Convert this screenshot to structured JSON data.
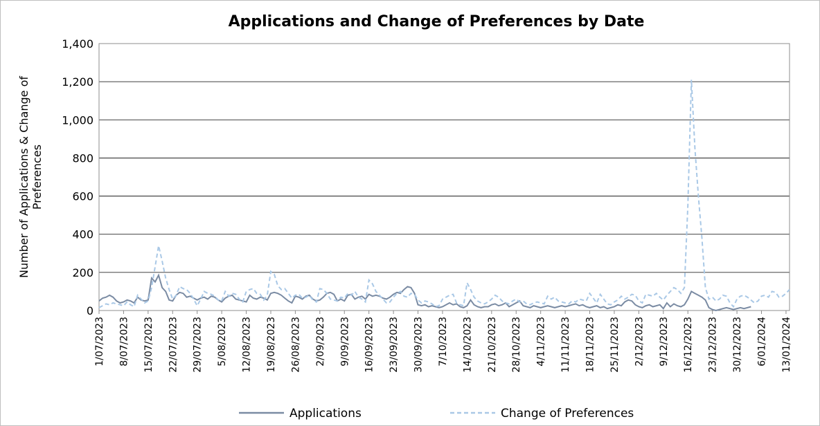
{
  "chart_data": {
    "type": "line",
    "title": "Applications and Change of Preferences by Date",
    "y_label": "Number of Applications & Change of Preferences",
    "categories": [
      "1/07/2023",
      null,
      null,
      null,
      null,
      null,
      null,
      "8/07/2023",
      null,
      null,
      null,
      null,
      null,
      null,
      "15/07/2023",
      null,
      null,
      null,
      null,
      null,
      null,
      "22/07/2023",
      null,
      null,
      null,
      null,
      null,
      null,
      "29/07/2023",
      null,
      null,
      null,
      null,
      null,
      null,
      "5/08/2023",
      null,
      null,
      null,
      null,
      null,
      null,
      "12/08/2023",
      null,
      null,
      null,
      null,
      null,
      null,
      "19/08/2023",
      null,
      null,
      null,
      null,
      null,
      null,
      "26/08/2023",
      null,
      null,
      null,
      null,
      null,
      null,
      "2/09/2023",
      null,
      null,
      null,
      null,
      null,
      null,
      "9/09/2023",
      null,
      null,
      null,
      null,
      null,
      null,
      "16/09/2023",
      null,
      null,
      null,
      null,
      null,
      null,
      "23/09/2023",
      null,
      null,
      null,
      null,
      null,
      null,
      "30/09/2023",
      null,
      null,
      null,
      null,
      null,
      null,
      "7/10/2023",
      null,
      null,
      null,
      null,
      null,
      null,
      "14/10/2023",
      null,
      null,
      null,
      null,
      null,
      null,
      "21/10/2023",
      null,
      null,
      null,
      null,
      null,
      null,
      "28/10/2023",
      null,
      null,
      null,
      null,
      null,
      null,
      "4/11/2023",
      null,
      null,
      null,
      null,
      null,
      null,
      "11/11/2023",
      null,
      null,
      null,
      null,
      null,
      null,
      "18/11/2023",
      null,
      null,
      null,
      null,
      null,
      null,
      "25/11/2023",
      null,
      null,
      null,
      null,
      null,
      null,
      "2/12/2023",
      null,
      null,
      null,
      null,
      null,
      null,
      "9/12/2023",
      null,
      null,
      null,
      null,
      null,
      null,
      "16/12/2023",
      null,
      null,
      null,
      null,
      null,
      null,
      "23/12/2023",
      null,
      null,
      null,
      null,
      null,
      null,
      "30/12/2023",
      null,
      null,
      null,
      null,
      null,
      null,
      "6/01/2024",
      null,
      null,
      null,
      null,
      null,
      null,
      "13/01/2024",
      null
    ],
    "series": [
      {
        "name": "Applications",
        "color": "#7a8ba3",
        "dash": false,
        "values": [
          50,
          65,
          70,
          80,
          70,
          50,
          40,
          45,
          55,
          50,
          40,
          70,
          55,
          50,
          55,
          170,
          150,
          185,
          120,
          100,
          55,
          50,
          80,
          95,
          90,
          70,
          75,
          65,
          55,
          65,
          70,
          60,
          75,
          70,
          55,
          45,
          65,
          75,
          80,
          60,
          55,
          50,
          45,
          80,
          65,
          60,
          70,
          65,
          55,
          90,
          95,
          90,
          80,
          65,
          50,
          40,
          75,
          70,
          60,
          75,
          80,
          60,
          50,
          55,
          70,
          90,
          95,
          85,
          50,
          60,
          50,
          80,
          85,
          60,
          70,
          75,
          60,
          85,
          75,
          80,
          75,
          65,
          60,
          70,
          85,
          95,
          90,
          110,
          125,
          120,
          90,
          30,
          25,
          30,
          20,
          25,
          20,
          15,
          20,
          30,
          40,
          30,
          35,
          20,
          15,
          25,
          55,
          30,
          20,
          15,
          20,
          20,
          30,
          35,
          25,
          30,
          40,
          20,
          30,
          40,
          50,
          25,
          20,
          15,
          25,
          20,
          15,
          20,
          25,
          20,
          15,
          20,
          25,
          20,
          25,
          30,
          35,
          25,
          30,
          20,
          15,
          20,
          25,
          15,
          20,
          10,
          15,
          20,
          30,
          25,
          45,
          55,
          50,
          30,
          20,
          15,
          25,
          30,
          20,
          25,
          30,
          10,
          40,
          20,
          35,
          25,
          20,
          30,
          60,
          100,
          90,
          80,
          70,
          55,
          15,
          5,
          0,
          5,
          10,
          15,
          10,
          5,
          10,
          15,
          10,
          15,
          20,
          null,
          null,
          null,
          null,
          null,
          null,
          null,
          null,
          null,
          null,
          null
        ]
      },
      {
        "name": "Change of Preferences",
        "color": "#a9c8e6",
        "dash": true,
        "values": [
          15,
          25,
          35,
          30,
          40,
          35,
          30,
          25,
          45,
          30,
          20,
          80,
          60,
          40,
          50,
          120,
          230,
          340,
          260,
          170,
          110,
          60,
          80,
          125,
          115,
          110,
          90,
          60,
          25,
          60,
          100,
          90,
          85,
          75,
          55,
          50,
          100,
          75,
          90,
          85,
          60,
          45,
          100,
          110,
          115,
          90,
          85,
          55,
          80,
          205,
          190,
          130,
          110,
          115,
          90,
          65,
          80,
          85,
          65,
          70,
          80,
          55,
          45,
          115,
          110,
          90,
          60,
          55,
          50,
          70,
          65,
          90,
          80,
          100,
          70,
          60,
          45,
          160,
          140,
          100,
          80,
          60,
          40,
          45,
          70,
          90,
          100,
          75,
          70,
          90,
          85,
          55,
          40,
          50,
          45,
          35,
          20,
          25,
          60,
          70,
          80,
          85,
          40,
          30,
          25,
          145,
          110,
          70,
          50,
          40,
          35,
          45,
          60,
          80,
          70,
          50,
          40,
          35,
          50,
          60,
          45,
          50,
          35,
          30,
          40,
          45,
          40,
          35,
          75,
          60,
          70,
          50,
          45,
          40,
          35,
          50,
          45,
          60,
          55,
          50,
          90,
          65,
          40,
          85,
          60,
          35,
          30,
          45,
          55,
          75,
          60,
          70,
          85,
          80,
          50,
          40,
          85,
          80,
          75,
          90,
          70,
          55,
          80,
          100,
          120,
          110,
          90,
          120,
          550,
          1210,
          850,
          600,
          380,
          120,
          60,
          70,
          50,
          60,
          80,
          75,
          40,
          20,
          60,
          75,
          80,
          70,
          55,
          40,
          50,
          75,
          80,
          70,
          100,
          95,
          70,
          75,
          90,
          110
        ]
      }
    ],
    "ylim": [
      0,
      1400
    ],
    "yticks": [
      0,
      200,
      400,
      600,
      800,
      {
        "value": 1000,
        "label": "1,000"
      },
      {
        "value": 1200,
        "label": "1,200"
      },
      {
        "value": 1400,
        "label": "1,400"
      }
    ],
    "grid": true,
    "legend": "bottom"
  }
}
